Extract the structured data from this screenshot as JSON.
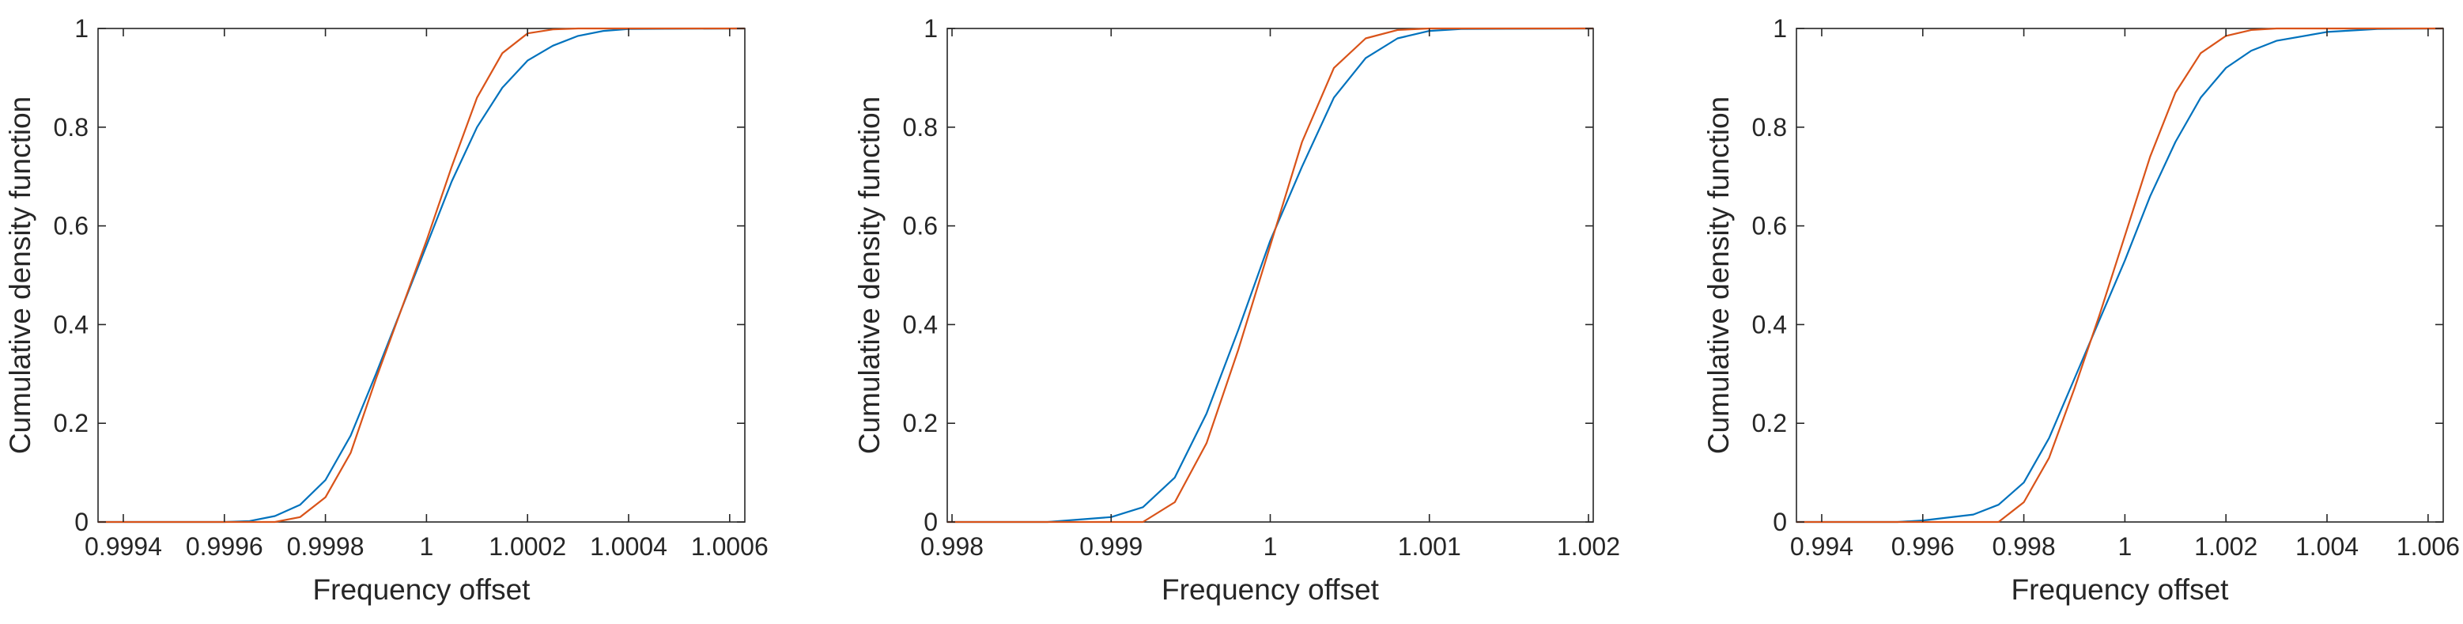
{
  "chart_data": [
    {
      "type": "line",
      "title": "",
      "xlabel": "Frequency offset",
      "ylabel": "Cumulative density function",
      "xlim": [
        0.99935,
        1.00063
      ],
      "ylim": [
        0,
        1
      ],
      "xticks": [
        0.9994,
        0.9996,
        0.9998,
        1,
        1.0002,
        1.0004,
        1.0006
      ],
      "xtick_labels": [
        "0.9994",
        "0.9996",
        "0.9998",
        "1",
        "1.0002",
        "1.0004",
        "1.0006"
      ],
      "yticks": [
        0,
        0.2,
        0.4,
        0.6,
        0.8,
        1
      ],
      "ytick_labels": [
        "0",
        "0.2",
        "0.4",
        "0.6",
        "0.8",
        "1"
      ],
      "grid": false,
      "series": [
        {
          "color": "#0072BD",
          "x": [
            0.99935,
            0.9996,
            0.99965,
            0.9997,
            0.99975,
            0.9998,
            0.99985,
            0.9999,
            0.99995,
            1.0,
            1.00005,
            1.0001,
            1.00015,
            1.0002,
            1.00025,
            1.0003,
            1.00035,
            1.0004,
            1.00063
          ],
          "y": [
            0,
            0,
            0.002,
            0.012,
            0.035,
            0.085,
            0.175,
            0.3,
            0.43,
            0.56,
            0.69,
            0.8,
            0.88,
            0.935,
            0.965,
            0.985,
            0.995,
            0.999,
            1
          ]
        },
        {
          "color": "#D95319",
          "x": [
            0.99935,
            0.9997,
            0.99975,
            0.9998,
            0.99985,
            0.9999,
            0.99995,
            1.0,
            1.00005,
            1.0001,
            1.00015,
            1.0002,
            1.00025,
            1.0003,
            1.00035,
            1.00063
          ],
          "y": [
            0,
            0,
            0.01,
            0.05,
            0.14,
            0.29,
            0.43,
            0.57,
            0.72,
            0.86,
            0.95,
            0.99,
            0.998,
            1,
            1,
            1
          ]
        }
      ]
    },
    {
      "type": "line",
      "title": "",
      "xlabel": "Frequency offset",
      "ylabel": "Cumulative density function",
      "xlim": [
        0.99797,
        1.00203
      ],
      "ylim": [
        0,
        1
      ],
      "xticks": [
        0.998,
        0.999,
        1,
        1.001,
        1.002
      ],
      "xtick_labels": [
        "0.998",
        "0.999",
        "1",
        "1.001",
        "1.002"
      ],
      "grid": false,
      "yticks": [
        0,
        0.2,
        0.4,
        0.6,
        0.8,
        1
      ],
      "ytick_labels": [
        "0",
        "0.2",
        "0.4",
        "0.6",
        "0.8",
        "1"
      ],
      "series": [
        {
          "color": "#0072BD",
          "x": [
            0.99797,
            0.9986,
            0.999,
            0.9992,
            0.9994,
            0.9996,
            0.9998,
            1.0,
            1.0002,
            1.0004,
            1.0006,
            1.0008,
            1.001,
            1.0012,
            1.00203
          ],
          "y": [
            0,
            0,
            0.01,
            0.03,
            0.09,
            0.22,
            0.39,
            0.57,
            0.72,
            0.86,
            0.94,
            0.98,
            0.995,
            0.999,
            1
          ]
        },
        {
          "color": "#D95319",
          "x": [
            0.99797,
            0.9992,
            0.9994,
            0.9996,
            0.9998,
            1.0,
            1.0002,
            1.0004,
            1.0006,
            1.0008,
            1.001,
            1.00203
          ],
          "y": [
            0,
            0,
            0.04,
            0.16,
            0.35,
            0.56,
            0.77,
            0.92,
            0.98,
            0.997,
            1,
            1
          ]
        }
      ]
    },
    {
      "type": "line",
      "title": "",
      "xlabel": "Frequency offset",
      "ylabel": "Cumulative density function",
      "xlim": [
        0.9935,
        1.0063
      ],
      "ylim": [
        0,
        1
      ],
      "xticks": [
        0.994,
        0.996,
        0.998,
        1,
        1.002,
        1.004,
        1.006
      ],
      "xtick_labels": [
        "0.994",
        "0.996",
        "0.998",
        "1",
        "1.002",
        "1.004",
        "1.006"
      ],
      "yticks": [
        0,
        0.2,
        0.4,
        0.6,
        0.8,
        1
      ],
      "ytick_labels": [
        "0",
        "0.2",
        "0.4",
        "0.6",
        "0.8",
        "1"
      ],
      "grid": false,
      "series": [
        {
          "color": "#0072BD",
          "x": [
            0.9935,
            0.9955,
            0.996,
            0.997,
            0.9975,
            0.998,
            0.9985,
            0.999,
            0.9995,
            1.0,
            1.0005,
            1.001,
            1.0015,
            1.002,
            1.0025,
            1.003,
            1.004,
            1.005,
            1.0063
          ],
          "y": [
            0,
            0,
            0.003,
            0.015,
            0.035,
            0.08,
            0.17,
            0.29,
            0.41,
            0.53,
            0.66,
            0.77,
            0.86,
            0.92,
            0.955,
            0.975,
            0.993,
            0.999,
            1
          ]
        },
        {
          "color": "#D95319",
          "x": [
            0.9935,
            0.9975,
            0.998,
            0.9985,
            0.999,
            0.9995,
            1.0,
            1.0005,
            1.001,
            1.0015,
            1.002,
            1.0025,
            1.003,
            1.0063
          ],
          "y": [
            0,
            0,
            0.04,
            0.13,
            0.27,
            0.42,
            0.58,
            0.74,
            0.87,
            0.95,
            0.985,
            0.997,
            1,
            1
          ]
        }
      ]
    }
  ]
}
